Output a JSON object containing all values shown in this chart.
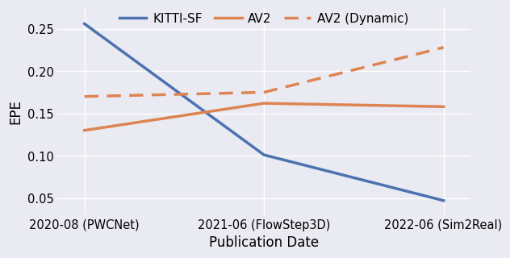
{
  "x_labels": [
    "2020-08 (PWCNet)",
    "2021-06 (FlowStep3D)",
    "2022-06 (Sim2Real)"
  ],
  "x_positions": [
    0,
    1,
    2
  ],
  "kitti_sf": [
    0.256,
    0.101,
    0.047
  ],
  "av2": [
    0.13,
    0.162,
    0.158
  ],
  "av2_dynamic": [
    0.17,
    0.175,
    0.228
  ],
  "kitti_color": "#4c72b0",
  "orange_color": "#dd8452",
  "ylabel": "EPE",
  "xlabel": "Publication Date",
  "legend_labels": [
    "KITTI-SF",
    "AV2",
    "AV2 (Dynamic)"
  ],
  "fig_bg_color": "#eaeaf2",
  "plot_bg_color": "#eaeaf2",
  "ylim": [
    0.03,
    0.275
  ],
  "yticks": [
    0.05,
    0.1,
    0.15,
    0.2,
    0.25
  ],
  "ytick_labels": [
    "0.05",
    "0.10",
    "0.15",
    "0.20",
    "0.25"
  ],
  "line_width": 2.5,
  "grid_color": "#ffffff",
  "grid_lw": 1.0
}
